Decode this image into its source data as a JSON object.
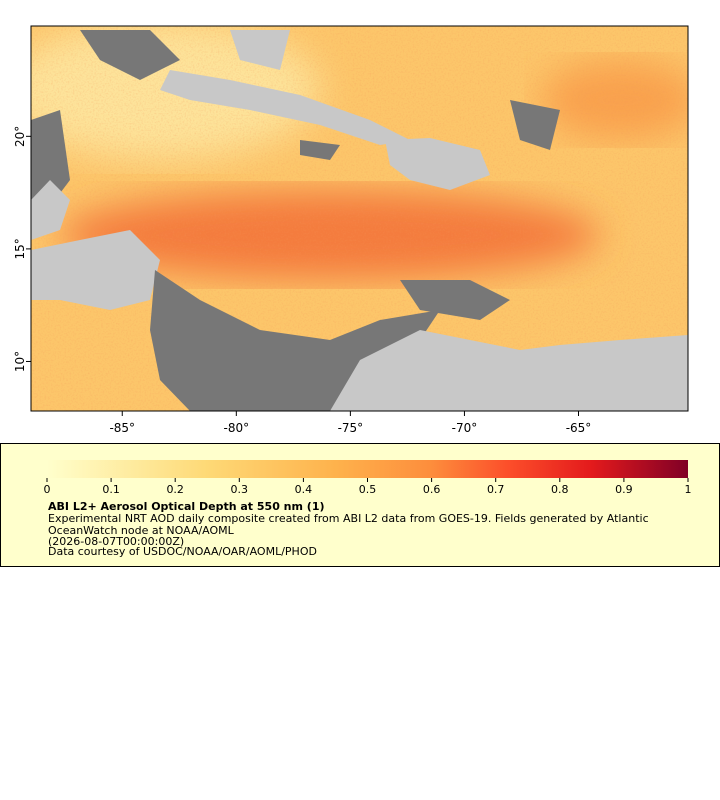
{
  "map": {
    "xlim": [
      -89,
      -60.2
    ],
    "ylim": [
      7.8,
      24.9
    ],
    "xticks": [
      {
        "value": -85,
        "label": "-85°"
      },
      {
        "value": -80,
        "label": "-80°"
      },
      {
        "value": -75,
        "label": "-75°"
      },
      {
        "value": -70,
        "label": "-70°"
      },
      {
        "value": -65,
        "label": "-65°"
      }
    ],
    "yticks": [
      {
        "value": 10,
        "label": "10°"
      },
      {
        "value": 15,
        "label": "15°"
      },
      {
        "value": 20,
        "label": "20°"
      }
    ]
  },
  "legend": {
    "lim": [
      0,
      1
    ],
    "ticks": [
      0,
      0.1,
      0.2,
      0.3,
      0.4,
      0.5,
      0.6,
      0.7,
      0.8,
      0.9,
      1
    ],
    "title": "ABI L2+ Aerosol Optical Depth at 550 nm (1)",
    "lines": [
      "Experimental NRT AOD daily composite created from ABI L2 data from GOES-19. Fields generated by Atlantic",
      "OceanWatch node at NOAA/AOML",
      "(2026-08-07T00:00:00Z)",
      "Data courtesy of USDOC/NOAA/OAR/AOML/PHOD"
    ]
  }
}
